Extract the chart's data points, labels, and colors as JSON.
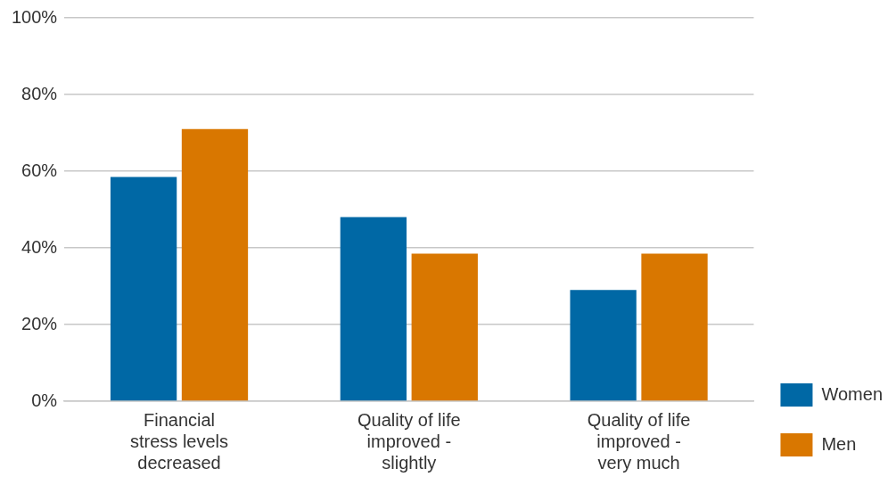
{
  "chart_data": {
    "type": "bar",
    "categories": [
      "Financial\nstress levels\ndecreased",
      "Quality of life\nimproved -\nslightly",
      "Quality of life\nimproved -\nvery much"
    ],
    "series": [
      {
        "name": "Women",
        "color": "#0068a5",
        "values": [
          58.5,
          48,
          29
        ]
      },
      {
        "name": "Men",
        "color": "#d97700",
        "values": [
          71,
          38.5,
          38.5
        ]
      }
    ],
    "ylim": [
      0,
      100
    ],
    "yticks": [
      {
        "value": 0,
        "label": "0%"
      },
      {
        "value": 20,
        "label": "20%"
      },
      {
        "value": 40,
        "label": "40%"
      },
      {
        "value": 60,
        "label": "60%"
      },
      {
        "value": 80,
        "label": "80%"
      },
      {
        "value": 100,
        "label": "100%"
      }
    ],
    "grid": "y",
    "legend": "right"
  }
}
